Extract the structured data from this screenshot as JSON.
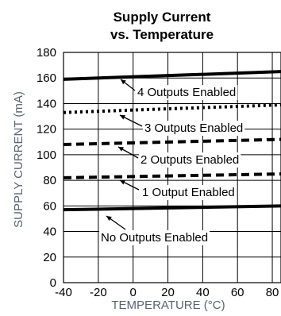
{
  "chart_data": {
    "type": "line",
    "title_line1": "Supply Current",
    "title_line2": "vs. Temperature",
    "xlabel": "TEMPERATURE (°C)",
    "ylabel": "SUPPLY CURRENT (mA)",
    "xlim": [
      -40,
      85
    ],
    "ylim": [
      0,
      180
    ],
    "xticks": [
      -40,
      -20,
      0,
      20,
      40,
      60,
      80
    ],
    "yticks": [
      0,
      20,
      40,
      60,
      80,
      100,
      120,
      140,
      160,
      180
    ],
    "grid": true,
    "series": [
      {
        "name": "4 Outputs Enabled",
        "x": [
          -40,
          85
        ],
        "y": [
          159,
          165
        ],
        "style": "solid"
      },
      {
        "name": "3 Outputs Enabled",
        "x": [
          -40,
          85
        ],
        "y": [
          133,
          139
        ],
        "style": "dotted"
      },
      {
        "name": "2 Outputs Enabled",
        "x": [
          -40,
          85
        ],
        "y": [
          108,
          112
        ],
        "style": "dashed"
      },
      {
        "name": "1 Output Enabled",
        "x": [
          -40,
          85
        ],
        "y": [
          82,
          85
        ],
        "style": "dashed"
      },
      {
        "name": "No Outputs Enabled",
        "x": [
          -40,
          85
        ],
        "y": [
          57,
          60
        ],
        "style": "solid"
      }
    ]
  }
}
